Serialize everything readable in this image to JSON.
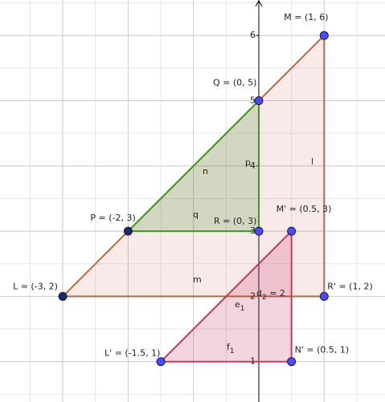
{
  "axis": {
    "yticks": [
      1,
      2,
      3,
      4,
      5,
      6
    ]
  },
  "points": [
    {
      "label": "M = (1, 6)",
      "x": 1,
      "y": 6
    },
    {
      "label": "Q = (0, 5)",
      "x": 0,
      "y": 5
    },
    {
      "label": "P = (-2, 3)",
      "x": -2,
      "y": 3
    },
    {
      "label": "R = (0, 3)",
      "x": 0,
      "y": 3
    },
    {
      "label": "M' = (0.5, 3)",
      "x": 0.5,
      "y": 3
    },
    {
      "label": "L = (-3, 2)",
      "x": -3,
      "y": 2
    },
    {
      "label": "R' = (1, 2)",
      "x": 1,
      "y": 2
    },
    {
      "label": "L' = (-1.5, 1)",
      "x": -1.5,
      "y": 1
    },
    {
      "label": "N' = (0.5, 1)",
      "x": 0.5,
      "y": 1
    }
  ],
  "segment_labels": [
    {
      "text": "n"
    },
    {
      "text": "p"
    },
    {
      "text": "q"
    },
    {
      "text": "l"
    },
    {
      "text": "m"
    },
    {
      "text": "e",
      "sub": "1"
    },
    {
      "text": "d",
      "sub": "2",
      "rest": " = 2"
    },
    {
      "text": "f",
      "sub": "1"
    }
  ]
}
